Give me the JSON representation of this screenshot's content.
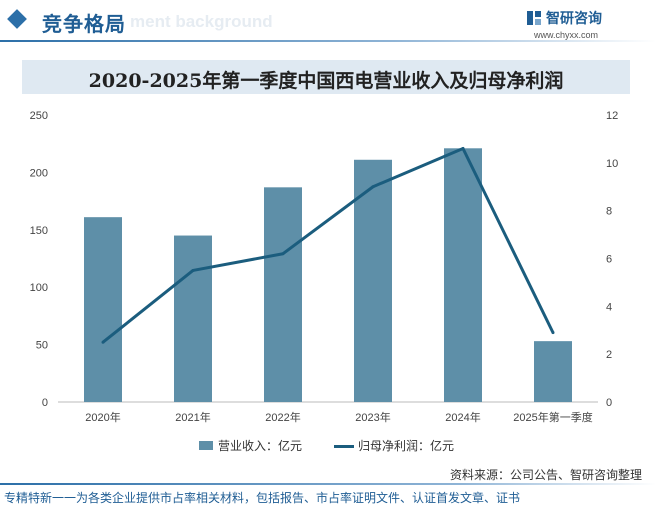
{
  "header": {
    "title": "竞争格局",
    "watermark_text": "ment background"
  },
  "logo": {
    "name": "智研咨询",
    "url": "www.chyxx.com",
    "icon": "chyxx-logo-icon"
  },
  "colors": {
    "bar": "#5e8fa8",
    "line": "#1b5d7e",
    "accent": "#1f5d94",
    "title_bg": "#dfe9f2"
  },
  "chart_data": {
    "type": "bar",
    "title": "2020-2025年第一季度中国西电营业收入及归母净利润",
    "categories": [
      "2020年",
      "2021年",
      "2022年",
      "2023年",
      "2024年",
      "2025年第一季度"
    ],
    "series": [
      {
        "name": "营业收入：亿元",
        "type": "bar",
        "axis": "left",
        "values": [
          161,
          145,
          187,
          211,
          221,
          53
        ]
      },
      {
        "name": "归母净利润：亿元",
        "type": "line",
        "axis": "right",
        "values": [
          2.5,
          5.5,
          6.2,
          9.0,
          10.6,
          2.9
        ]
      }
    ],
    "y_left": {
      "ylim": [
        0,
        250
      ],
      "ticks": [
        "0",
        "50",
        "100",
        "150",
        "200",
        "250"
      ]
    },
    "y_right": {
      "ylim": [
        0,
        12
      ],
      "ticks": [
        "0",
        "2",
        "4",
        "6",
        "8",
        "10",
        "12"
      ]
    },
    "grid": false,
    "legend": "bottom"
  },
  "source": "资料来源：公司公告、智研咨询整理",
  "footer": "专精特新一一为各类企业提供市占率相关材料，包括报告、市占率证明文件、认证首发文章、证书"
}
